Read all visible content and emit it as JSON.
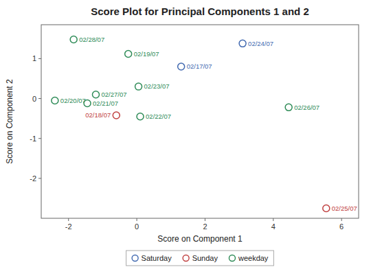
{
  "chart_data": {
    "type": "scatter",
    "title": "Score Plot for Principal Components 1 and 2",
    "x_label": "Score on Component 1",
    "y_label": "Score on Component 2",
    "xlim": [
      -2.8,
      6.5
    ],
    "ylim": [
      -3.0,
      1.85
    ],
    "xticks": [
      -2,
      0,
      2,
      4,
      6
    ],
    "yticks": [
      -2,
      -1,
      0,
      1
    ],
    "grid": false,
    "legend": "bottom",
    "marker": "circle",
    "series": [
      {
        "name": "Saturday",
        "color": "#4169B0",
        "x": [
          1.3,
          3.1
        ],
        "values": [
          0.8,
          1.38
        ],
        "labels": [
          "02/17/07",
          "02/24/07"
        ]
      },
      {
        "name": "Sunday",
        "color": "#C04040",
        "x": [
          -0.6,
          5.55
        ],
        "values": [
          -0.42,
          -2.75
        ],
        "labels": [
          "02/18/07",
          "02/25/07"
        ]
      },
      {
        "name": "weekday",
        "color": "#2E8B57",
        "x": [
          -0.25,
          -2.4,
          -1.45,
          0.1,
          0.05,
          4.45,
          -1.2,
          -1.85
        ],
        "values": [
          1.12,
          -0.05,
          -0.12,
          -0.45,
          0.3,
          -0.22,
          0.1,
          1.48
        ],
        "labels": [
          "02/19/07",
          "02/20/07",
          "02/21/07",
          "02/22/07",
          "02/23/07",
          "02/26/07",
          "02/27/07",
          "02/28/07"
        ]
      }
    ]
  }
}
